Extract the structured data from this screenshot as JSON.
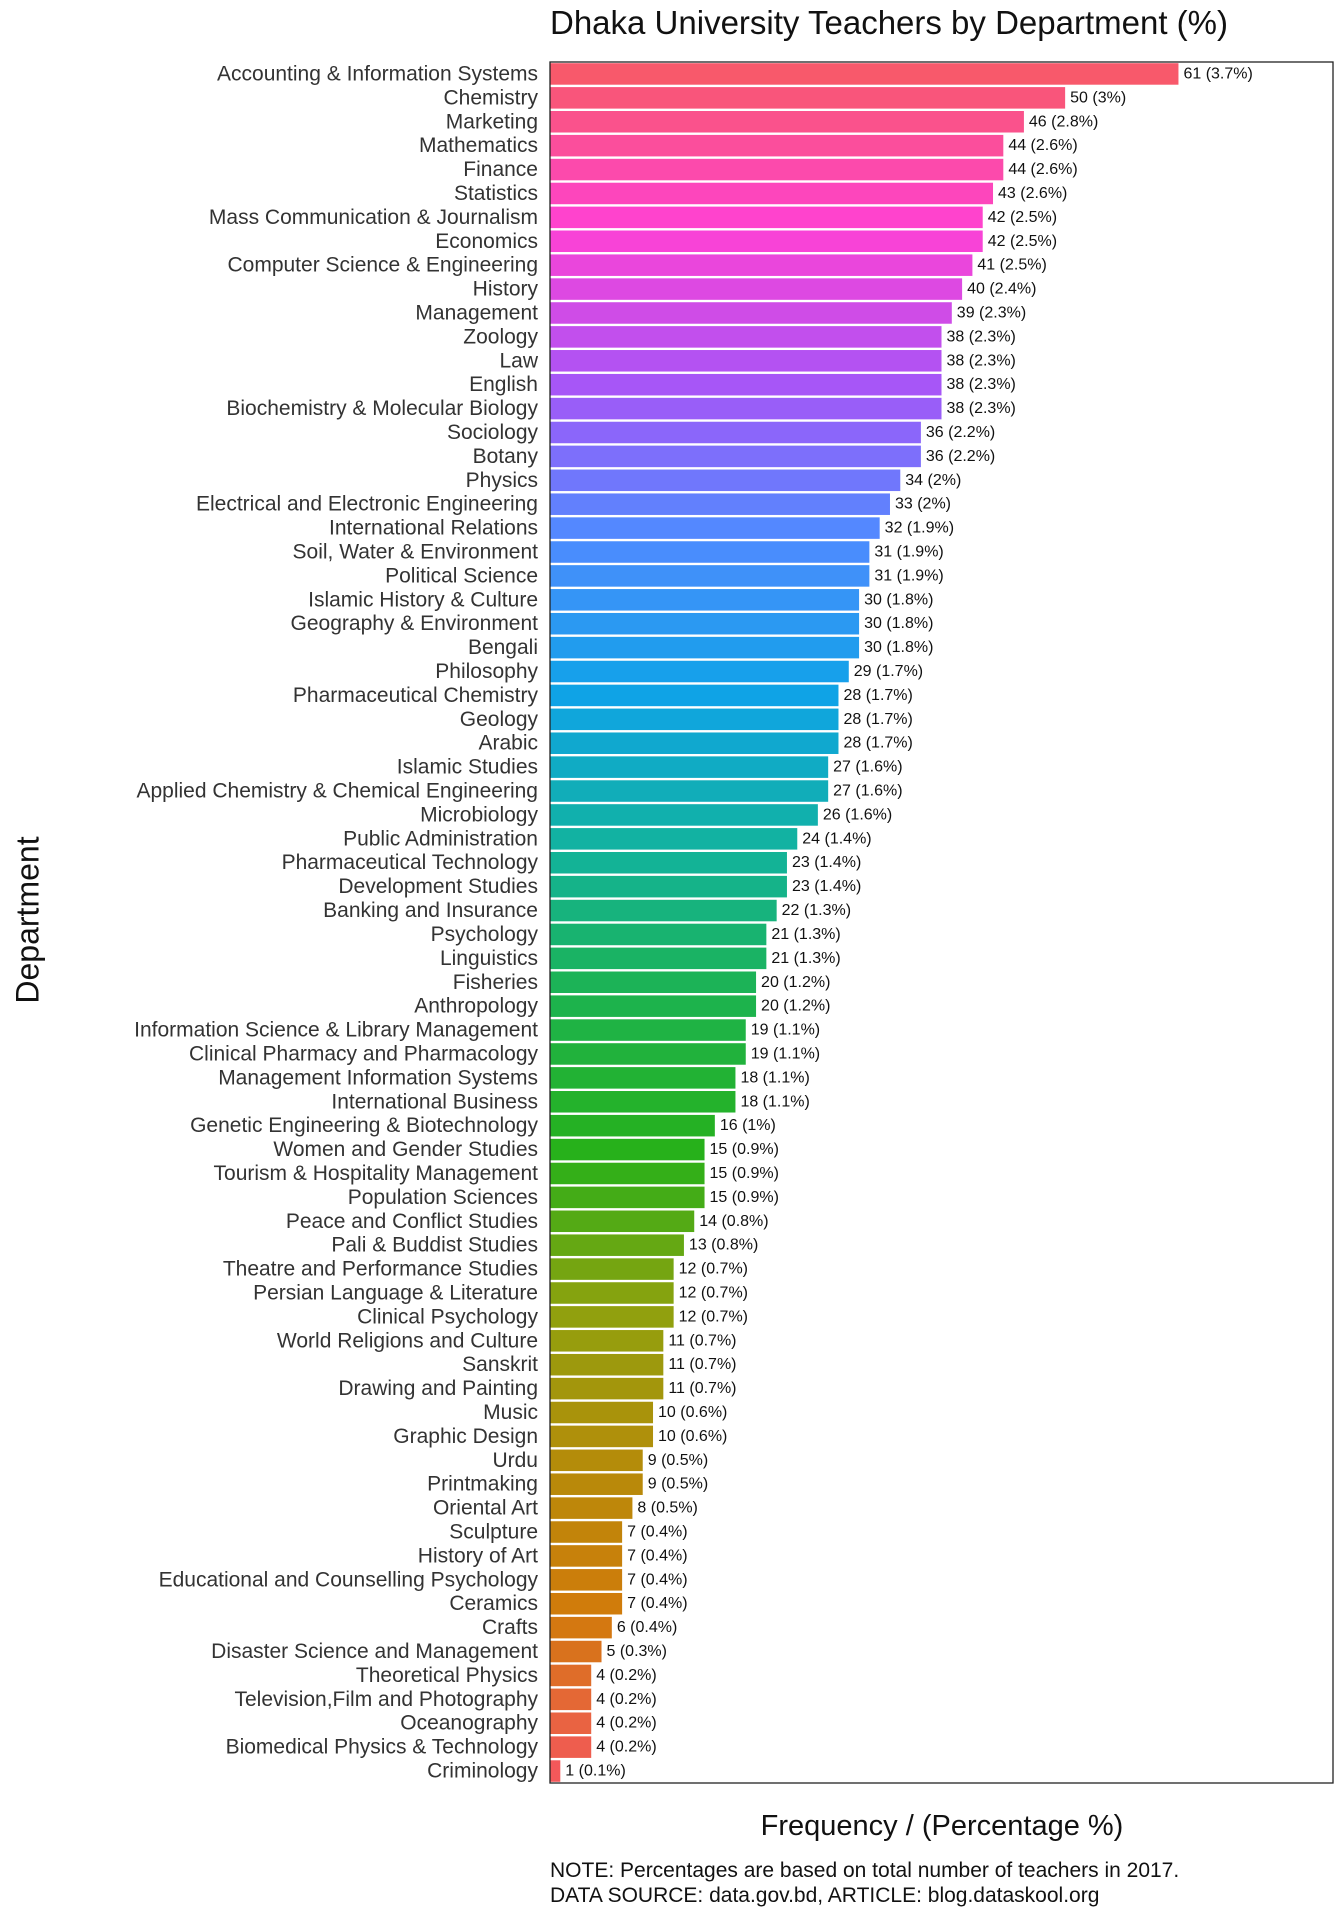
{
  "chart_data": {
    "type": "bar",
    "orientation": "horizontal",
    "title": "Dhaka University Teachers by Department (%)",
    "xlabel": "Frequency / (Percentage %)",
    "ylabel": "Department",
    "xlim": [
      0,
      76
    ],
    "grid": false,
    "color_gradient_top_to_bottom": [
      "#F8596B",
      "#FF41D4",
      "#A855F7",
      "#4F8BFF",
      "#0FA3E8",
      "#12B39F",
      "#1DB34E",
      "#27B11A",
      "#8FA10E",
      "#B58C0A",
      "#D27A0B",
      "#F3585A"
    ],
    "categories": [
      "Accounting & Information Systems",
      "Chemistry",
      "Marketing",
      "Mathematics",
      "Finance",
      "Statistics",
      "Mass Communication & Journalism",
      "Economics",
      "Computer Science & Engineering",
      "History",
      "Management",
      "Zoology",
      "Law",
      "English",
      "Biochemistry & Molecular Biology",
      "Sociology",
      "Botany",
      "Physics",
      "Electrical and Electronic Engineering",
      "International Relations",
      "Soil, Water & Environment",
      "Political Science",
      "Islamic History & Culture",
      "Geography & Environment",
      "Bengali",
      "Philosophy",
      "Pharmaceutical Chemistry",
      "Geology",
      "Arabic",
      "Islamic Studies",
      "Applied Chemistry & Chemical Engineering",
      "Microbiology",
      "Public Administration",
      "Pharmaceutical Technology",
      "Development Studies",
      "Banking and Insurance",
      "Psychology",
      "Linguistics",
      "Fisheries",
      "Anthropology",
      "Information Science & Library Management",
      "Clinical Pharmacy and Pharmacology",
      "Management Information Systems",
      "International Business",
      "Genetic Engineering & Biotechnology",
      "Women and Gender Studies",
      "Tourism & Hospitality Management",
      "Population Sciences",
      "Peace and Conflict Studies",
      "Pali & Buddist Studies",
      "Theatre and Performance Studies",
      "Persian Language & Literature",
      "Clinical Psychology",
      "World Religions and Culture",
      "Sanskrit",
      "Drawing and Painting",
      "Music",
      "Graphic Design",
      "Urdu",
      "Printmaking",
      "Oriental Art",
      "Sculpture",
      "History of Art",
      "Educational and Counselling Psychology",
      "Ceramics",
      "Crafts",
      "Disaster Science and Management",
      "Theoretical Physics",
      "Television,Film and Photography",
      "Oceanography",
      "Biomedical Physics & Technology",
      "Criminology"
    ],
    "values": [
      61,
      50,
      46,
      44,
      44,
      43,
      42,
      42,
      41,
      40,
      39,
      38,
      38,
      38,
      38,
      36,
      36,
      34,
      33,
      32,
      31,
      31,
      30,
      30,
      30,
      29,
      28,
      28,
      28,
      27,
      27,
      26,
      24,
      23,
      23,
      22,
      21,
      21,
      20,
      20,
      19,
      19,
      18,
      18,
      16,
      15,
      15,
      15,
      14,
      13,
      12,
      12,
      12,
      11,
      11,
      11,
      10,
      10,
      9,
      9,
      8,
      7,
      7,
      7,
      7,
      6,
      5,
      4,
      4,
      4,
      4,
      1
    ],
    "data_labels": [
      "61 (3.7%)",
      "50 (3%)",
      "46 (2.8%)",
      "44 (2.6%)",
      "44 (2.6%)",
      "43 (2.6%)",
      "42 (2.5%)",
      "42 (2.5%)",
      "41 (2.5%)",
      "40 (2.4%)",
      "39 (2.3%)",
      "38 (2.3%)",
      "38 (2.3%)",
      "38 (2.3%)",
      "38 (2.3%)",
      "36 (2.2%)",
      "36 (2.2%)",
      "34 (2%)",
      "33 (2%)",
      "32 (1.9%)",
      "31 (1.9%)",
      "31 (1.9%)",
      "30 (1.8%)",
      "30 (1.8%)",
      "30 (1.8%)",
      "29 (1.7%)",
      "28 (1.7%)",
      "28 (1.7%)",
      "28 (1.7%)",
      "27 (1.6%)",
      "27 (1.6%)",
      "26 (1.6%)",
      "24 (1.4%)",
      "23 (1.4%)",
      "23 (1.4%)",
      "22 (1.3%)",
      "21 (1.3%)",
      "21 (1.3%)",
      "20 (1.2%)",
      "20 (1.2%)",
      "19 (1.1%)",
      "19 (1.1%)",
      "18 (1.1%)",
      "18 (1.1%)",
      "16 (1%)",
      "15 (0.9%)",
      "15 (0.9%)",
      "15 (0.9%)",
      "14 (0.8%)",
      "13 (0.8%)",
      "12 (0.7%)",
      "12 (0.7%)",
      "12 (0.7%)",
      "11 (0.7%)",
      "11 (0.7%)",
      "11 (0.7%)",
      "10 (0.6%)",
      "10 (0.6%)",
      "9 (0.5%)",
      "9 (0.5%)",
      "8 (0.5%)",
      "7 (0.4%)",
      "7 (0.4%)",
      "7 (0.4%)",
      "7 (0.4%)",
      "6 (0.4%)",
      "5 (0.3%)",
      "4 (0.2%)",
      "4 (0.2%)",
      "4 (0.2%)",
      "4 (0.2%)",
      "1 (0.1%)"
    ]
  },
  "notes": {
    "note": "NOTE: Percentages are based on total number of teachers in 2017.",
    "source": "DATA SOURCE: data.gov.bd, ARTICLE: blog.dataskool.org"
  }
}
